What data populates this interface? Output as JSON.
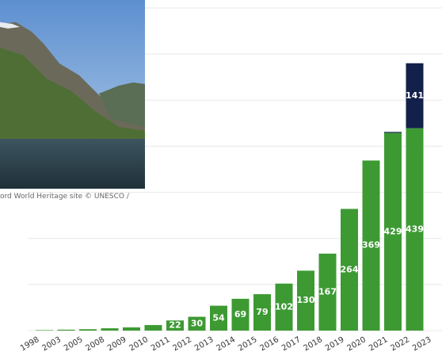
{
  "chart_data": {
    "type": "stacked-bar",
    "categories": [
      "1998",
      "2003",
      "2005",
      "2008",
      "2009",
      "2010",
      "2011",
      "2012",
      "2013",
      "2014",
      "2015",
      "2016",
      "2017",
      "2018",
      "2019",
      "2020",
      "2021",
      "2022",
      "2023"
    ],
    "series": [
      {
        "color": "#3d9a33",
        "values": [
          1,
          2,
          3,
          5,
          7,
          12,
          22,
          30,
          54,
          69,
          79,
          102,
          130,
          167,
          264,
          369,
          429,
          439,
          null
        ]
      },
      {
        "color": "#13214a",
        "values": [
          0,
          0,
          0,
          0,
          0,
          0,
          0,
          0,
          0,
          0,
          0,
          0,
          0,
          0,
          0,
          0,
          2,
          141,
          null
        ]
      }
    ],
    "ylim": [
      0,
      700
    ],
    "yticks": [
      0,
      100,
      200,
      300,
      400,
      500,
      600,
      700
    ],
    "grid": true
  },
  "image_caption": "ord World Heritage site © UNESCO /"
}
